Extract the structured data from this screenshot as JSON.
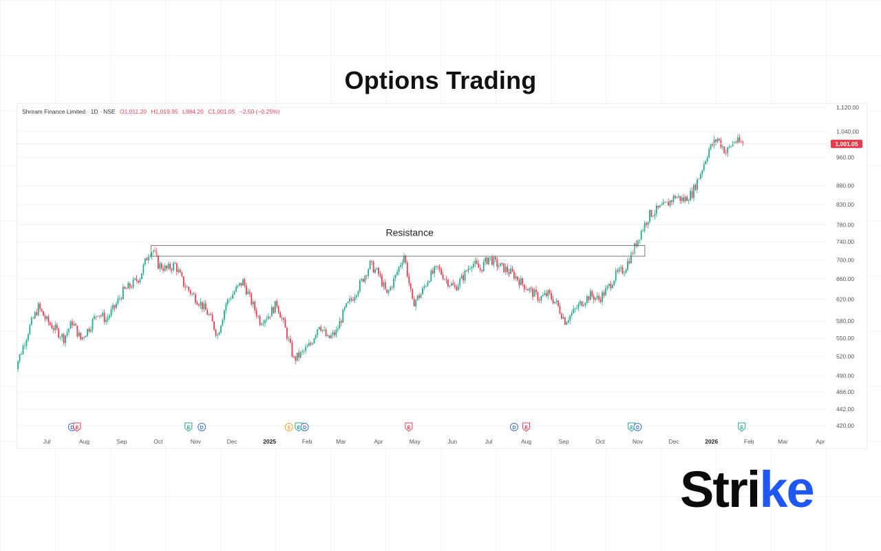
{
  "page_title": "Options Trading",
  "legend": {
    "name": "Shriram Finance Limited · 1D · NSE",
    "open": "O1,011.20",
    "high": "H1,019.95",
    "low": "L984.20",
    "close": "C1,001.05",
    "change": "−2.50 (−0.25%)"
  },
  "colors": {
    "up": "#22a98b",
    "down": "#ef3a4b",
    "price_tag": "#ef3a4b",
    "logo_accent": "#1f57f5"
  },
  "logo": {
    "main": "Stri",
    "accent": "ke"
  },
  "chart_data": {
    "type": "candlestick",
    "symbol": "Shriram Finance Limited",
    "interval": "1D",
    "exchange": "NSE",
    "last_price": 1001.05,
    "last_price_label": "1,001.05",
    "y_ticks": [
      420,
      442,
      466,
      490,
      520,
      550,
      580,
      620,
      660,
      700,
      740,
      780,
      830,
      880,
      960,
      1040,
      1120
    ],
    "y_tick_labels": [
      "420.00",
      "442.00",
      "466.00",
      "490.00",
      "520.00",
      "550.00",
      "580.00",
      "620.00",
      "660.00",
      "700.00",
      "740.00",
      "780.00",
      "830.00",
      "880.00",
      "960.00",
      "1,040.00",
      "1,120.00"
    ],
    "x_ticks": [
      {
        "label": "Jul",
        "date": "2024-07-01",
        "bold": false
      },
      {
        "label": "Aug",
        "date": "2024-08-01",
        "bold": false
      },
      {
        "label": "Sep",
        "date": "2024-09-01",
        "bold": false
      },
      {
        "label": "Oct",
        "date": "2024-10-01",
        "bold": false
      },
      {
        "label": "Nov",
        "date": "2024-11-01",
        "bold": false
      },
      {
        "label": "Dec",
        "date": "2024-12-01",
        "bold": false
      },
      {
        "label": "2025",
        "date": "2025-01-01",
        "bold": true
      },
      {
        "label": "Feb",
        "date": "2025-02-01",
        "bold": false
      },
      {
        "label": "Mar",
        "date": "2025-03-01",
        "bold": false
      },
      {
        "label": "Apr",
        "date": "2025-04-01",
        "bold": false
      },
      {
        "label": "May",
        "date": "2025-05-01",
        "bold": false
      },
      {
        "label": "Jun",
        "date": "2025-06-01",
        "bold": false
      },
      {
        "label": "Jul",
        "date": "2025-07-01",
        "bold": false
      },
      {
        "label": "Aug",
        "date": "2025-08-01",
        "bold": false
      },
      {
        "label": "Sep",
        "date": "2025-09-01",
        "bold": false
      },
      {
        "label": "Oct",
        "date": "2025-10-01",
        "bold": false
      },
      {
        "label": "Nov",
        "date": "2025-11-01",
        "bold": false
      },
      {
        "label": "Dec",
        "date": "2025-12-01",
        "bold": false
      },
      {
        "label": "2026",
        "date": "2026-01-01",
        "bold": true
      },
      {
        "label": "Feb",
        "date": "2026-02-01",
        "bold": false
      },
      {
        "label": "Mar",
        "date": "2026-03-01",
        "bold": false
      },
      {
        "label": "Apr",
        "date": "2026-04-01",
        "bold": false
      }
    ],
    "price_path": [
      [
        "2024-06-01",
        450
      ],
      [
        "2024-06-03",
        492
      ],
      [
        "2024-06-10",
        528
      ],
      [
        "2024-06-17",
        570
      ],
      [
        "2024-06-24",
        605
      ],
      [
        "2024-07-01",
        580
      ],
      [
        "2024-07-08",
        565
      ],
      [
        "2024-07-15",
        550
      ],
      [
        "2024-07-22",
        578
      ],
      [
        "2024-07-29",
        548
      ],
      [
        "2024-08-05",
        568
      ],
      [
        "2024-08-12",
        596
      ],
      [
        "2024-08-19",
        582
      ],
      [
        "2024-08-26",
        605
      ],
      [
        "2024-09-02",
        635
      ],
      [
        "2024-09-09",
        648
      ],
      [
        "2024-09-16",
        665
      ],
      [
        "2024-09-23",
        715
      ],
      [
        "2024-09-27",
        722
      ],
      [
        "2024-10-01",
        690
      ],
      [
        "2024-10-08",
        680
      ],
      [
        "2024-10-15",
        690
      ],
      [
        "2024-10-22",
        650
      ],
      [
        "2024-10-29",
        630
      ],
      [
        "2024-11-05",
        612
      ],
      [
        "2024-11-12",
        590
      ],
      [
        "2024-11-19",
        555
      ],
      [
        "2024-11-26",
        612
      ],
      [
        "2024-12-03",
        635
      ],
      [
        "2024-12-10",
        655
      ],
      [
        "2024-12-17",
        615
      ],
      [
        "2024-12-24",
        580
      ],
      [
        "2024-12-31",
        590
      ],
      [
        "2025-01-07",
        612
      ],
      [
        "2025-01-14",
        565
      ],
      [
        "2025-01-21",
        515
      ],
      [
        "2025-01-28",
        525
      ],
      [
        "2025-02-04",
        540
      ],
      [
        "2025-02-11",
        575
      ],
      [
        "2025-02-18",
        548
      ],
      [
        "2025-02-25",
        560
      ],
      [
        "2025-03-04",
        600
      ],
      [
        "2025-03-11",
        625
      ],
      [
        "2025-03-18",
        655
      ],
      [
        "2025-03-25",
        690
      ],
      [
        "2025-04-01",
        670
      ],
      [
        "2025-04-08",
        628
      ],
      [
        "2025-04-15",
        665
      ],
      [
        "2025-04-22",
        712
      ],
      [
        "2025-04-29",
        612
      ],
      [
        "2025-05-06",
        630
      ],
      [
        "2025-05-13",
        665
      ],
      [
        "2025-05-20",
        682
      ],
      [
        "2025-05-27",
        658
      ],
      [
        "2025-06-03",
        642
      ],
      [
        "2025-06-10",
        665
      ],
      [
        "2025-06-17",
        695
      ],
      [
        "2025-06-24",
        680
      ],
      [
        "2025-07-01",
        705
      ],
      [
        "2025-07-08",
        690
      ],
      [
        "2025-07-15",
        680
      ],
      [
        "2025-07-22",
        668
      ],
      [
        "2025-07-29",
        650
      ],
      [
        "2025-08-05",
        635
      ],
      [
        "2025-08-12",
        622
      ],
      [
        "2025-08-19",
        630
      ],
      [
        "2025-08-26",
        612
      ],
      [
        "2025-09-02",
        580
      ],
      [
        "2025-09-09",
        596
      ],
      [
        "2025-09-16",
        615
      ],
      [
        "2025-09-23",
        628
      ],
      [
        "2025-09-30",
        620
      ],
      [
        "2025-10-07",
        640
      ],
      [
        "2025-10-14",
        668
      ],
      [
        "2025-10-21",
        680
      ],
      [
        "2025-10-28",
        718
      ],
      [
        "2025-11-04",
        765
      ],
      [
        "2025-11-11",
        805
      ],
      [
        "2025-11-18",
        818
      ],
      [
        "2025-11-25",
        830
      ],
      [
        "2025-12-02",
        852
      ],
      [
        "2025-12-09",
        842
      ],
      [
        "2025-12-16",
        860
      ],
      [
        "2025-12-23",
        915
      ],
      [
        "2025-12-30",
        985
      ],
      [
        "2026-01-06",
        1018
      ],
      [
        "2026-01-13",
        975
      ],
      [
        "2026-01-20",
        1010
      ],
      [
        "2026-01-27",
        1001
      ]
    ],
    "annotations": [
      {
        "text": "Resistance",
        "type": "box",
        "x_start": "2024-09-25",
        "x_end": "2025-11-07",
        "y_low": 708,
        "y_high": 732
      }
    ],
    "events": [
      {
        "date": "2024-07-22",
        "label": "D",
        "color": "#3d6fe0"
      },
      {
        "date": "2024-07-26",
        "label": "E",
        "color": "#ef3a4b"
      },
      {
        "date": "2024-10-26",
        "label": "E",
        "color": "#22a98b"
      },
      {
        "date": "2024-11-06",
        "label": "D",
        "color": "#3d6fe0"
      },
      {
        "date": "2025-01-17",
        "label": "S",
        "color": "#f5a623"
      },
      {
        "date": "2025-01-25",
        "label": "E",
        "color": "#22a98b"
      },
      {
        "date": "2025-01-30",
        "label": "D",
        "color": "#3d6fe0"
      },
      {
        "date": "2025-04-26",
        "label": "E",
        "color": "#ef3a4b"
      },
      {
        "date": "2025-07-22",
        "label": "D",
        "color": "#3d6fe0"
      },
      {
        "date": "2025-08-01",
        "label": "E",
        "color": "#ef3a4b"
      },
      {
        "date": "2025-10-27",
        "label": "E",
        "color": "#22a98b"
      },
      {
        "date": "2025-11-01",
        "label": "D",
        "color": "#3d6fe0"
      },
      {
        "date": "2026-01-26",
        "label": "E",
        "color": "#22a98b"
      }
    ]
  }
}
